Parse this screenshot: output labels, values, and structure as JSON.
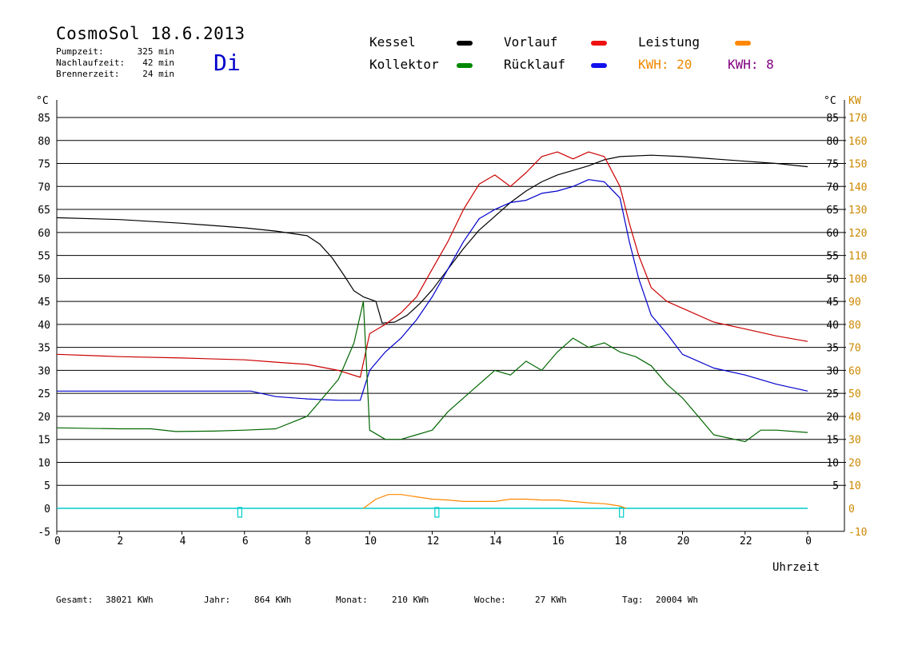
{
  "header": {
    "title": "CosmoSol 18.6.2013",
    "day": "Di",
    "stats": [
      {
        "label": "Pumpzeit:",
        "value": "325 min"
      },
      {
        "label": "Nachlaufzeit:",
        "value": "42 min"
      },
      {
        "label": "Brennerzeit:",
        "value": "24 min"
      }
    ]
  },
  "legend": {
    "kessel": "Kessel",
    "vorlauf": "Vorlauf",
    "leistung": "Leistung",
    "kollektor": "Kollektor",
    "ruecklauf": "Rücklauf",
    "kwh_orange": "KWH: 20",
    "kwh_purple": "KWH: 8"
  },
  "footer": {
    "gesamt_label": "Gesamt:",
    "gesamt_value": "38021 KWh",
    "jahr_label": "Jahr:",
    "jahr_value": "864 KWh",
    "monat_label": "Monat:",
    "monat_value": "210 KWh",
    "woche_label": "Woche:",
    "woche_value": "27 KWh",
    "tag_label": "Tag:",
    "tag_value": "20004 Wh"
  },
  "colors": {
    "kessel": "#000000",
    "vorlauf": "#cc0000",
    "ruecklauf": "#0000cc",
    "kollektor": "#006600",
    "leistung": "#ff8800",
    "kwh_purple": "#800080",
    "cyan": "#00cccc",
    "right_axis": "#cc8800"
  },
  "chart_data": {
    "type": "line",
    "xlabel": "Uhrzeit",
    "ylabel_left": "°C",
    "ylabel_right_1": "°C",
    "ylabel_right_2": "KW",
    "x_ticks": [
      "0",
      "2",
      "4",
      "6",
      "8",
      "10",
      "12",
      "14",
      "16",
      "18",
      "20",
      "22",
      "0"
    ],
    "y_ticks_left": [
      "85",
      "80",
      "75",
      "70",
      "65",
      "60",
      "55",
      "50",
      "45",
      "40",
      "35",
      "30",
      "25",
      "20",
      "15",
      "10",
      "5",
      "0",
      "-5"
    ],
    "y_ticks_right": [
      "85",
      "80",
      "75",
      "70",
      "65",
      "60",
      "55",
      "50",
      "45",
      "40",
      "35",
      "30",
      "25",
      "20",
      "15",
      "10",
      "5"
    ],
    "kw_ticks": [
      "170",
      "160",
      "150",
      "140",
      "130",
      "120",
      "110",
      "100",
      "90",
      "80",
      "70",
      "60",
      "50",
      "40",
      "30",
      "20",
      "10",
      "0",
      "-10"
    ],
    "xlim": [
      0,
      24
    ],
    "ylim": [
      -5,
      85
    ],
    "grid": true,
    "series": [
      {
        "name": "Kessel",
        "key": "kessel",
        "points": [
          [
            0,
            63.2
          ],
          [
            2,
            62.8
          ],
          [
            4,
            62.0
          ],
          [
            6,
            61.0
          ],
          [
            7,
            60.3
          ],
          [
            8,
            59.3
          ],
          [
            8.4,
            57.5
          ],
          [
            8.8,
            54.5
          ],
          [
            9.2,
            50.5
          ],
          [
            9.5,
            47.3
          ],
          [
            9.8,
            46.0
          ],
          [
            10.2,
            45.0
          ],
          [
            10.4,
            40.3
          ],
          [
            10.8,
            40.5
          ],
          [
            11.2,
            42.0
          ],
          [
            11.6,
            44.5
          ],
          [
            12,
            47.5
          ],
          [
            12.5,
            52.0
          ],
          [
            13,
            56.5
          ],
          [
            13.5,
            60.5
          ],
          [
            14,
            63.5
          ],
          [
            14.5,
            66.5
          ],
          [
            15,
            69.0
          ],
          [
            15.5,
            71.0
          ],
          [
            16,
            72.5
          ],
          [
            16.5,
            73.5
          ],
          [
            17,
            74.5
          ],
          [
            17.5,
            75.8
          ],
          [
            18,
            76.5
          ],
          [
            19,
            76.8
          ],
          [
            20,
            76.5
          ],
          [
            21,
            76.0
          ],
          [
            22,
            75.5
          ],
          [
            23,
            75.0
          ],
          [
            24,
            74.3
          ]
        ]
      },
      {
        "name": "Vorlauf",
        "key": "vorlauf",
        "points": [
          [
            0,
            33.5
          ],
          [
            2,
            33.0
          ],
          [
            4,
            32.7
          ],
          [
            6,
            32.3
          ],
          [
            7,
            31.8
          ],
          [
            8,
            31.3
          ],
          [
            9,
            30.0
          ],
          [
            9.7,
            28.5
          ],
          [
            10,
            38.0
          ],
          [
            10.5,
            40.0
          ],
          [
            11,
            42.5
          ],
          [
            11.5,
            46.0
          ],
          [
            12,
            52.0
          ],
          [
            12.5,
            58.0
          ],
          [
            13,
            65.0
          ],
          [
            13.5,
            70.5
          ],
          [
            14,
            72.5
          ],
          [
            14.5,
            70.0
          ],
          [
            15,
            73.0
          ],
          [
            15.5,
            76.5
          ],
          [
            16,
            77.5
          ],
          [
            16.5,
            76.0
          ],
          [
            17,
            77.5
          ],
          [
            17.5,
            76.5
          ],
          [
            18,
            70.0
          ],
          [
            18.3,
            62.0
          ],
          [
            18.6,
            55.0
          ],
          [
            19,
            48.0
          ],
          [
            19.5,
            45.0
          ],
          [
            20,
            43.5
          ],
          [
            21,
            40.5
          ],
          [
            22,
            39.0
          ],
          [
            23,
            37.5
          ],
          [
            24,
            36.3
          ]
        ]
      },
      {
        "name": "Rücklauf",
        "key": "ruecklauf",
        "points": [
          [
            0,
            25.5
          ],
          [
            1.4,
            25.5
          ],
          [
            6.2,
            25.5
          ],
          [
            7,
            24.3
          ],
          [
            8,
            23.8
          ],
          [
            9,
            23.5
          ],
          [
            9.7,
            23.5
          ],
          [
            10,
            30.0
          ],
          [
            10.5,
            34.0
          ],
          [
            11,
            37.0
          ],
          [
            11.5,
            41.0
          ],
          [
            12,
            46.0
          ],
          [
            12.5,
            52.0
          ],
          [
            13,
            58.0
          ],
          [
            13.5,
            63.0
          ],
          [
            14,
            65.0
          ],
          [
            14.5,
            66.5
          ],
          [
            15,
            67.0
          ],
          [
            15.5,
            68.5
          ],
          [
            16,
            69.0
          ],
          [
            16.5,
            70.0
          ],
          [
            17,
            71.5
          ],
          [
            17.5,
            71.0
          ],
          [
            18,
            67.5
          ],
          [
            18.3,
            58.0
          ],
          [
            18.6,
            50.0
          ],
          [
            19,
            42.0
          ],
          [
            19.5,
            38.0
          ],
          [
            20,
            33.5
          ],
          [
            21,
            30.5
          ],
          [
            22,
            29.0
          ],
          [
            23,
            27.0
          ],
          [
            24,
            25.5
          ]
        ]
      },
      {
        "name": "Kollektor",
        "key": "kollektor",
        "points": [
          [
            0,
            17.5
          ],
          [
            2,
            17.3
          ],
          [
            3,
            17.3
          ],
          [
            3.8,
            16.7
          ],
          [
            5,
            16.8
          ],
          [
            6,
            17.0
          ],
          [
            7,
            17.3
          ],
          [
            8,
            20.0
          ],
          [
            8.5,
            24.0
          ],
          [
            9,
            28.0
          ],
          [
            9.5,
            36.0
          ],
          [
            9.8,
            45.0
          ],
          [
            10,
            17.0
          ],
          [
            10.5,
            15.0
          ],
          [
            11,
            15.0
          ],
          [
            11.5,
            16.0
          ],
          [
            12,
            17.0
          ],
          [
            12.5,
            21.0
          ],
          [
            13,
            24.0
          ],
          [
            13.5,
            27.0
          ],
          [
            14,
            30.0
          ],
          [
            14.5,
            29.0
          ],
          [
            15,
            32.0
          ],
          [
            15.5,
            30.0
          ],
          [
            16,
            34.0
          ],
          [
            16.5,
            37.0
          ],
          [
            17,
            35.0
          ],
          [
            17.5,
            36.0
          ],
          [
            18,
            34.0
          ],
          [
            18.5,
            33.0
          ],
          [
            19,
            31.0
          ],
          [
            19.5,
            27.0
          ],
          [
            20,
            24.0
          ],
          [
            20.5,
            20.0
          ],
          [
            21,
            16.0
          ],
          [
            22,
            14.5
          ],
          [
            22.5,
            17.0
          ],
          [
            23,
            17.0
          ],
          [
            24,
            16.5
          ]
        ]
      },
      {
        "name": "Leistung",
        "key": "leistung",
        "points": [
          [
            9.8,
            0
          ],
          [
            10.2,
            2.0
          ],
          [
            10.6,
            3.0
          ],
          [
            11,
            3.0
          ],
          [
            11.5,
            2.5
          ],
          [
            12,
            2.0
          ],
          [
            12.5,
            1.8
          ],
          [
            13,
            1.5
          ],
          [
            13.5,
            1.5
          ],
          [
            14,
            1.5
          ],
          [
            14.5,
            2.0
          ],
          [
            15,
            2.0
          ],
          [
            15.5,
            1.8
          ],
          [
            16,
            1.8
          ],
          [
            16.5,
            1.5
          ],
          [
            17,
            1.2
          ],
          [
            17.5,
            1.0
          ],
          [
            18,
            0.5
          ],
          [
            18.2,
            0
          ]
        ]
      }
    ]
  }
}
